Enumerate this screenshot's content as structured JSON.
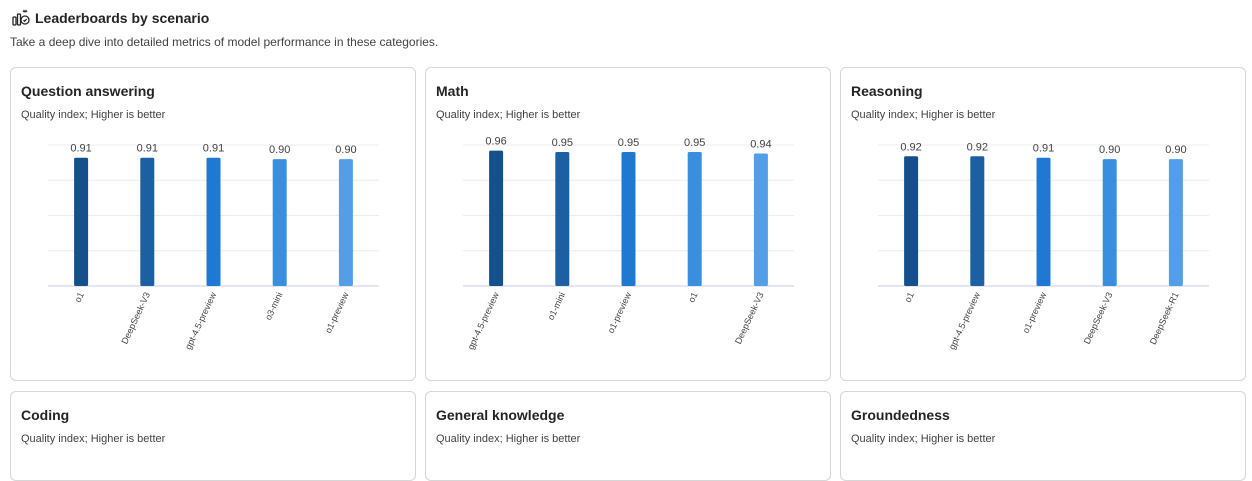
{
  "header": {
    "title": "Leaderboards by scenario",
    "subtitle": "Take a deep dive into detailed metrics of model performance in these categories.",
    "icon": "leaderboard-icon"
  },
  "colors": [
    "#16508a",
    "#1c5fa3",
    "#1f78d1",
    "#3a8ee0",
    "#539ee8"
  ],
  "cards": [
    {
      "title": "Question answering",
      "subtitle": "Quality index; Higher is better",
      "chart_data": {
        "type": "bar",
        "categories": [
          "o1",
          "DeepSeek-V3",
          "gpt-4.5-preview",
          "o3-mini",
          "o1-preview"
        ],
        "values": [
          0.91,
          0.91,
          0.91,
          0.9,
          0.9
        ],
        "labels": [
          "0.91",
          "0.91",
          "0.91",
          "0.90",
          "0.90"
        ],
        "title": "",
        "xlabel": "",
        "ylabel": "",
        "grid": true
      }
    },
    {
      "title": "Math",
      "subtitle": "Quality index; Higher is better",
      "chart_data": {
        "type": "bar",
        "categories": [
          "gpt-4.5-preview",
          "o1-mini",
          "o1-preview",
          "o1",
          "DeepSeek-V3"
        ],
        "values": [
          0.96,
          0.95,
          0.95,
          0.95,
          0.94
        ],
        "labels": [
          "0.96",
          "0.95",
          "0.95",
          "0.95",
          "0.94"
        ],
        "title": "",
        "xlabel": "",
        "ylabel": "",
        "grid": true
      }
    },
    {
      "title": "Reasoning",
      "subtitle": "Quality index; Higher is better",
      "chart_data": {
        "type": "bar",
        "categories": [
          "o1",
          "gpt-4.5-preview",
          "o1-preview",
          "DeepSeek-V3",
          "DeepSeek-R1"
        ],
        "values": [
          0.92,
          0.92,
          0.91,
          0.9,
          0.9
        ],
        "labels": [
          "0.92",
          "0.92",
          "0.91",
          "0.90",
          "0.90"
        ],
        "title": "",
        "xlabel": "",
        "ylabel": "",
        "grid": true
      }
    },
    {
      "title": "Coding",
      "subtitle": "Quality index; Higher is better"
    },
    {
      "title": "General knowledge",
      "subtitle": "Quality index; Higher is better"
    },
    {
      "title": "Groundedness",
      "subtitle": "Quality index; Higher is better"
    }
  ]
}
